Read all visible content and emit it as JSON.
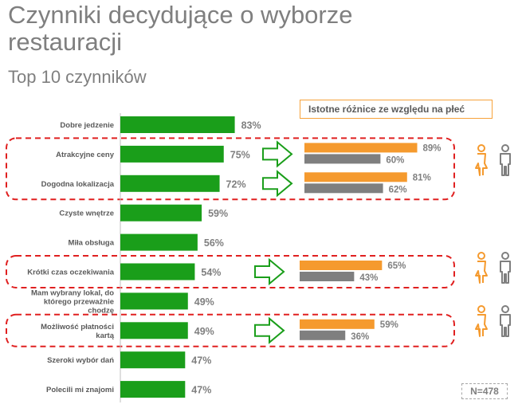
{
  "title": "Czynniki decydujące o wyborze restauracji",
  "subtitle": "Top 10 czynników",
  "gender_note": "Istotne różnice ze względu na płeć",
  "sample_size": "N=478",
  "colors": {
    "main_bar": "#1a9e1a",
    "female": "#f59a2e",
    "male": "#7f7f7f",
    "highlight": "#e02020",
    "label": "#595959"
  },
  "icons": {
    "female": "woman-icon",
    "male": "man-icon",
    "arrow": "arrow-right-icon"
  },
  "chart_data": {
    "type": "bar",
    "orientation": "horizontal",
    "categories": [
      "Dobre jedzenie",
      "Atrakcyjne ceny",
      "Dogodna lokalizacja",
      "Czyste wnętrze",
      "Miła obsługa",
      "Krótki czas oczekiwania",
      "Mam wybrany lokal, do którego przeważnie chodzę",
      "Możliwość płatności kartą",
      "Szeroki wybór dań",
      "Polecili mi znajomi"
    ],
    "values": [
      83,
      75,
      72,
      59,
      56,
      54,
      49,
      49,
      47,
      47
    ],
    "value_labels": [
      "83%",
      "75%",
      "72%",
      "59%",
      "56%",
      "54%",
      "49%",
      "49%",
      "47%",
      "47%"
    ],
    "unit": "%",
    "xlim": [
      0,
      100
    ],
    "gender_breakdown": [
      {
        "category": "Atrakcyjne ceny",
        "female": 89,
        "male": 60,
        "female_label": "89%",
        "male_label": "60%"
      },
      {
        "category": "Dogodna lokalizacja",
        "female": 81,
        "male": 62,
        "female_label": "81%",
        "male_label": "62%"
      },
      {
        "category": "Krótki czas oczekiwania",
        "female": 65,
        "male": 43,
        "female_label": "65%",
        "male_label": "43%"
      },
      {
        "category": "Możliwość płatności kartą",
        "female": 59,
        "male": 36,
        "female_label": "59%",
        "male_label": "36%"
      }
    ]
  }
}
